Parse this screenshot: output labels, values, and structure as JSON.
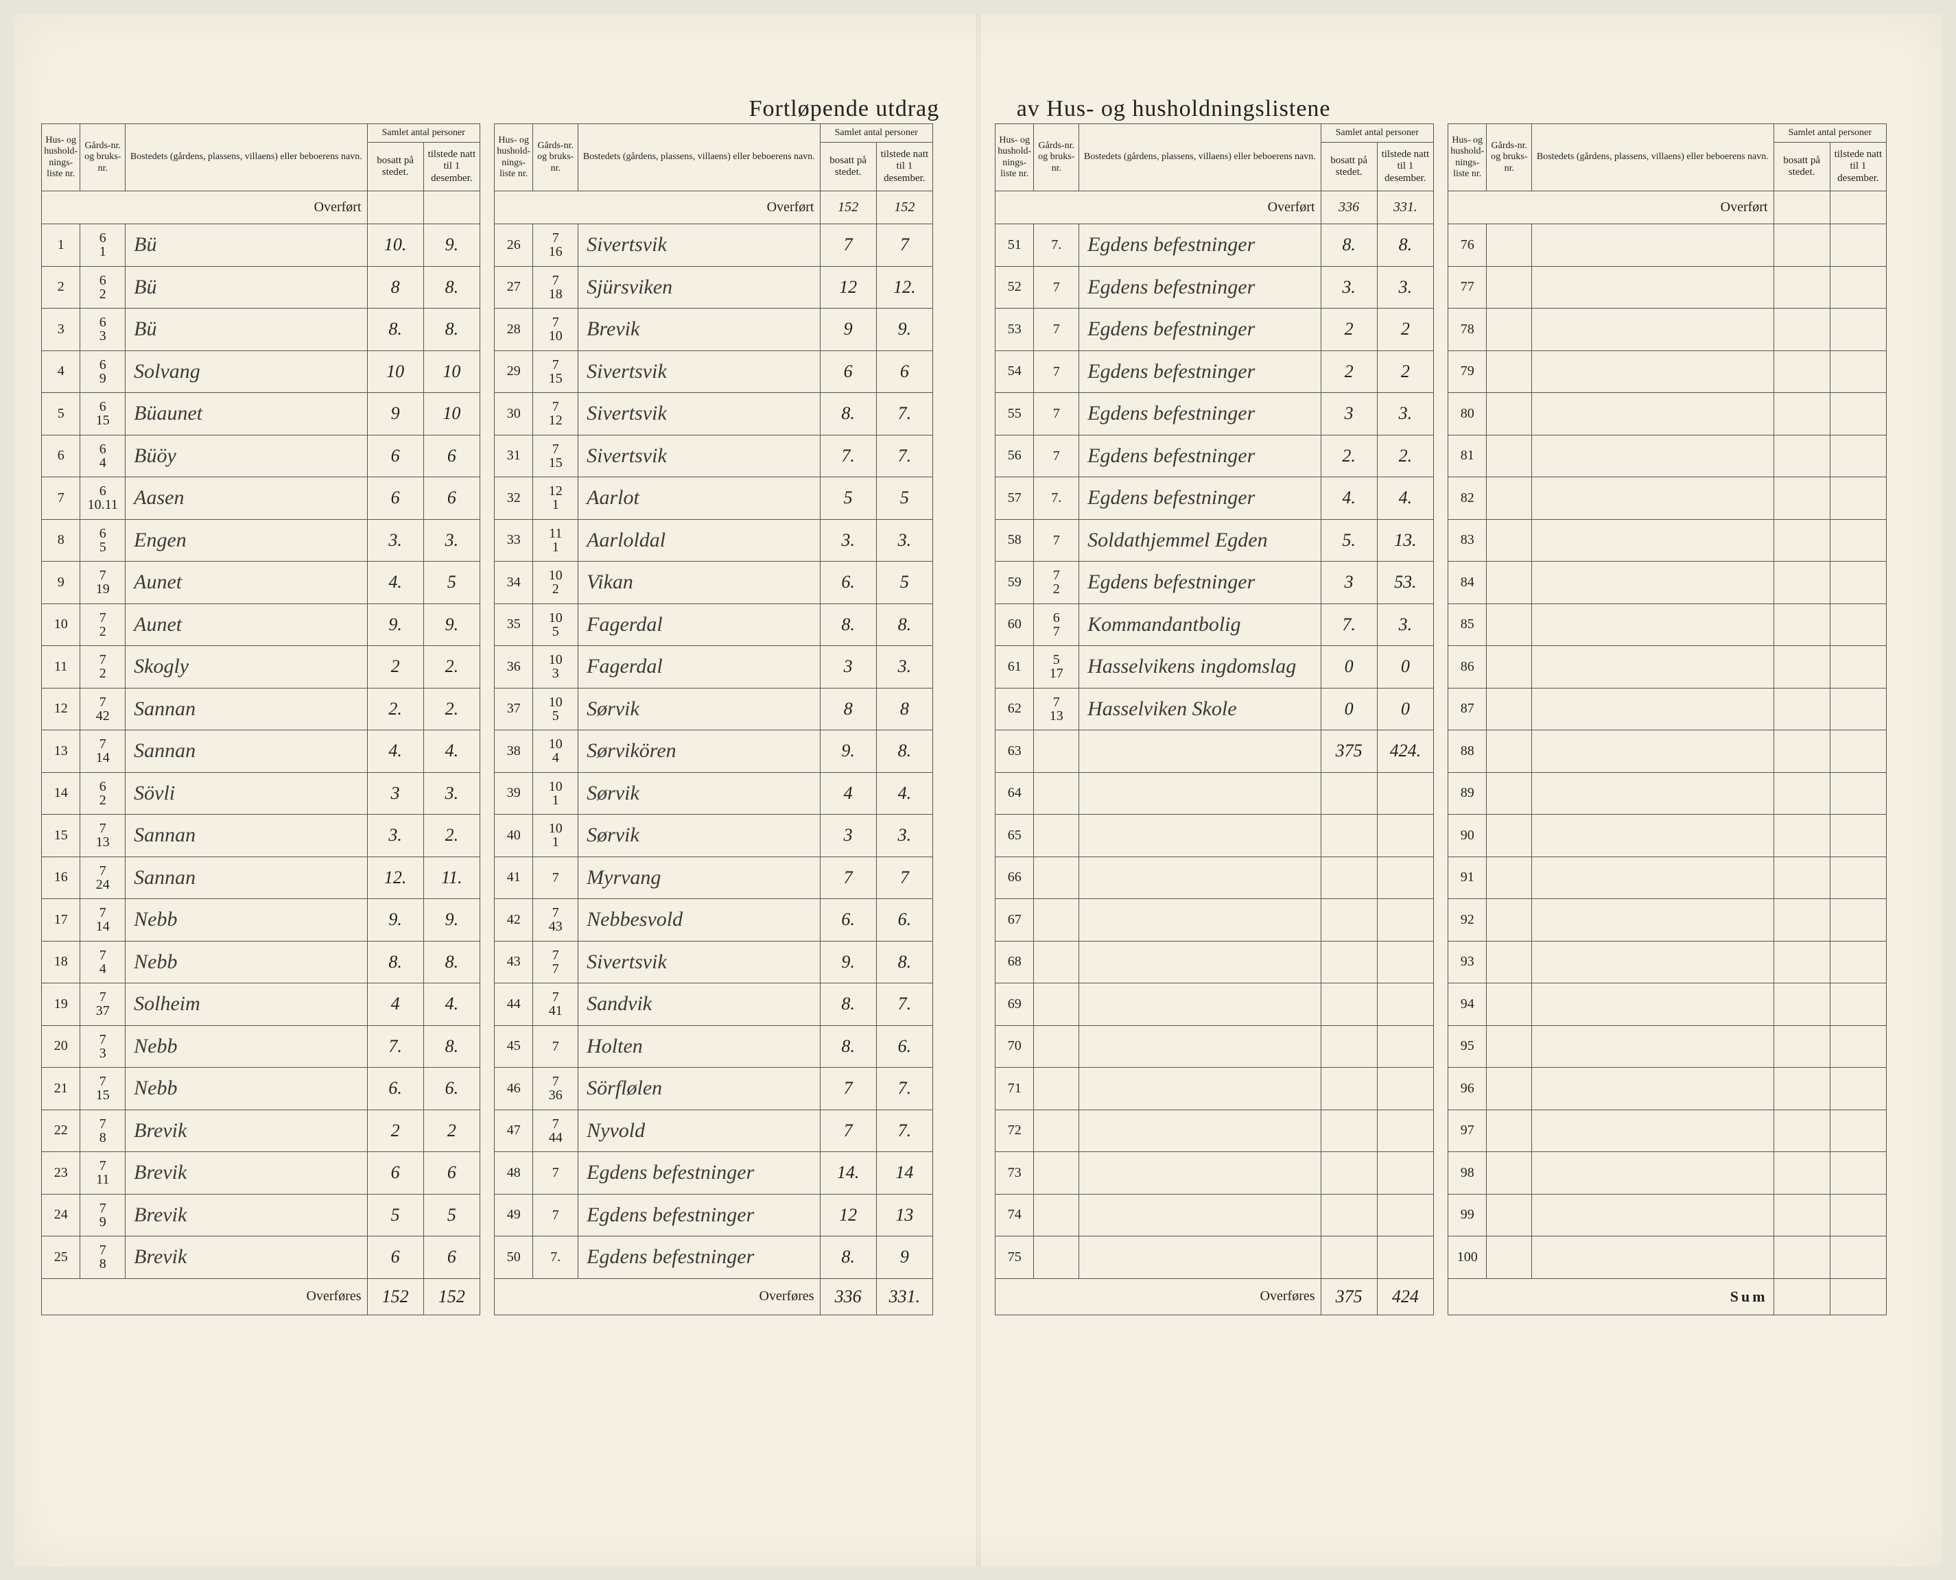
{
  "title_left": "Fortløpende utdrag",
  "title_right": "av Hus- og husholdningslistene",
  "headers": {
    "liste": "Hus- og hushold-nings-liste nr.",
    "gard": "Gårds-nr. og bruks-nr.",
    "bosted": "Bostedets (gårdens, plassens, villaens) eller beboerens navn.",
    "samlet": "Samlet antal personer",
    "bosatt": "bosatt på stedet.",
    "tilstede": "tilstede natt til 1 desember."
  },
  "labels": {
    "overfort": "Overført",
    "overfores": "Overføres",
    "sum": "Sum"
  },
  "colors": {
    "paper": "#f5f0e1",
    "ink": "#222222",
    "handwriting": "#3a3a3a",
    "rule": "#555555"
  },
  "sections": [
    {
      "overfort": {
        "b": "",
        "t": ""
      },
      "rows": [
        {
          "n": "1",
          "g1": "6",
          "g2": "1",
          "name": "Bü",
          "b": "10.",
          "t": "9."
        },
        {
          "n": "2",
          "g1": "6",
          "g2": "2",
          "name": "Bü",
          "b": "8",
          "t": "8."
        },
        {
          "n": "3",
          "g1": "6",
          "g2": "3",
          "name": "Bü",
          "b": "8.",
          "t": "8."
        },
        {
          "n": "4",
          "g1": "6",
          "g2": "9",
          "name": "Solvang",
          "b": "10",
          "t": "10"
        },
        {
          "n": "5",
          "g1": "6",
          "g2": "15",
          "name": "Büaunet",
          "b": "9",
          "t": "10"
        },
        {
          "n": "6",
          "g1": "6",
          "g2": "4",
          "name": "Büöy",
          "b": "6",
          "t": "6"
        },
        {
          "n": "7",
          "g1": "6",
          "g2": "10.11",
          "name": "Aasen",
          "b": "6",
          "t": "6"
        },
        {
          "n": "8",
          "g1": "6",
          "g2": "5",
          "name": "Engen",
          "b": "3.",
          "t": "3."
        },
        {
          "n": "9",
          "g1": "7",
          "g2": "19",
          "name": "Aunet",
          "b": "4.",
          "t": "5"
        },
        {
          "n": "10",
          "g1": "7",
          "g2": "2",
          "name": "Aunet",
          "b": "9.",
          "t": "9."
        },
        {
          "n": "11",
          "g1": "7",
          "g2": "2",
          "name": "Skogly",
          "b": "2",
          "t": "2."
        },
        {
          "n": "12",
          "g1": "7",
          "g2": "42",
          "name": "Sannan",
          "b": "2.",
          "t": "2."
        },
        {
          "n": "13",
          "g1": "7",
          "g2": "14",
          "name": "Sannan",
          "b": "4.",
          "t": "4."
        },
        {
          "n": "14",
          "g1": "6",
          "g2": "2",
          "name": "Sövli",
          "b": "3",
          "t": "3."
        },
        {
          "n": "15",
          "g1": "7",
          "g2": "13",
          "name": "Sannan",
          "b": "3.",
          "t": "2."
        },
        {
          "n": "16",
          "g1": "7",
          "g2": "24",
          "name": "Sannan",
          "b": "12.",
          "t": "11."
        },
        {
          "n": "17",
          "g1": "7",
          "g2": "14",
          "name": "Nebb",
          "b": "9.",
          "t": "9."
        },
        {
          "n": "18",
          "g1": "7",
          "g2": "4",
          "name": "Nebb",
          "b": "8.",
          "t": "8."
        },
        {
          "n": "19",
          "g1": "7",
          "g2": "37",
          "name": "Solheim",
          "b": "4",
          "t": "4."
        },
        {
          "n": "20",
          "g1": "7",
          "g2": "3",
          "name": "Nebb",
          "b": "7.",
          "t": "8."
        },
        {
          "n": "21",
          "g1": "7",
          "g2": "15",
          "name": "Nebb",
          "b": "6.",
          "t": "6."
        },
        {
          "n": "22",
          "g1": "7",
          "g2": "8",
          "name": "Brevik",
          "b": "2",
          "t": "2"
        },
        {
          "n": "23",
          "g1": "7",
          "g2": "11",
          "name": "Brevik",
          "b": "6",
          "t": "6"
        },
        {
          "n": "24",
          "g1": "7",
          "g2": "9",
          "name": "Brevik",
          "b": "5",
          "t": "5"
        },
        {
          "n": "25",
          "g1": "7",
          "g2": "8",
          "name": "Brevik",
          "b": "6",
          "t": "6"
        }
      ],
      "overfores": {
        "b": "152",
        "t": "152"
      }
    },
    {
      "overfort": {
        "b": "152",
        "t": "152"
      },
      "rows": [
        {
          "n": "26",
          "g1": "7",
          "g2": "16",
          "name": "Sivertsvik",
          "b": "7",
          "t": "7"
        },
        {
          "n": "27",
          "g1": "7",
          "g2": "18",
          "name": "Sjürsviken",
          "b": "12",
          "t": "12."
        },
        {
          "n": "28",
          "g1": "7",
          "g2": "10",
          "name": "Brevik",
          "b": "9",
          "t": "9."
        },
        {
          "n": "29",
          "g1": "7",
          "g2": "15",
          "name": "Sivertsvik",
          "b": "6",
          "t": "6"
        },
        {
          "n": "30",
          "g1": "7",
          "g2": "12",
          "name": "Sivertsvik",
          "b": "8.",
          "t": "7."
        },
        {
          "n": "31",
          "g1": "7",
          "g2": "15",
          "name": "Sivertsvik",
          "b": "7.",
          "t": "7."
        },
        {
          "n": "32",
          "g1": "12",
          "g2": "1",
          "name": "Aarlot",
          "b": "5",
          "t": "5"
        },
        {
          "n": "33",
          "g1": "11",
          "g2": "1",
          "name": "Aarloldal",
          "b": "3.",
          "t": "3."
        },
        {
          "n": "34",
          "g1": "10",
          "g2": "2",
          "name": "Vikan",
          "b": "6.",
          "t": "5"
        },
        {
          "n": "35",
          "g1": "10",
          "g2": "5",
          "name": "Fagerdal",
          "b": "8.",
          "t": "8."
        },
        {
          "n": "36",
          "g1": "10",
          "g2": "3",
          "name": "Fagerdal",
          "b": "3",
          "t": "3."
        },
        {
          "n": "37",
          "g1": "10",
          "g2": "5",
          "name": "Sørvik",
          "b": "8",
          "t": "8"
        },
        {
          "n": "38",
          "g1": "10",
          "g2": "4",
          "name": "Sørvikören",
          "b": "9.",
          "t": "8."
        },
        {
          "n": "39",
          "g1": "10",
          "g2": "1",
          "name": "Sørvik",
          "b": "4",
          "t": "4."
        },
        {
          "n": "40",
          "g1": "10",
          "g2": "1",
          "name": "Sørvik",
          "b": "3",
          "t": "3."
        },
        {
          "n": "41",
          "g1": "7",
          "g2": "",
          "name": "Myrvang",
          "b": "7",
          "t": "7"
        },
        {
          "n": "42",
          "g1": "7",
          "g2": "43",
          "name": "Nebbesvold",
          "b": "6.",
          "t": "6."
        },
        {
          "n": "43",
          "g1": "7",
          "g2": "7",
          "name": "Sivertsvik",
          "b": "9.",
          "t": "8."
        },
        {
          "n": "44",
          "g1": "7",
          "g2": "41",
          "name": "Sandvik",
          "b": "8.",
          "t": "7."
        },
        {
          "n": "45",
          "g1": "7",
          "g2": "",
          "name": "Holten",
          "b": "8.",
          "t": "6."
        },
        {
          "n": "46",
          "g1": "7",
          "g2": "36",
          "name": "Sörflølen",
          "b": "7",
          "t": "7."
        },
        {
          "n": "47",
          "g1": "7",
          "g2": "44",
          "name": "Nyvold",
          "b": "7",
          "t": "7."
        },
        {
          "n": "48",
          "g1": "7",
          "g2": "",
          "name": "Egdens befestninger",
          "b": "14.",
          "t": "14"
        },
        {
          "n": "49",
          "g1": "7",
          "g2": "",
          "name": "Egdens befestninger",
          "b": "12",
          "t": "13"
        },
        {
          "n": "50",
          "g1": "7.",
          "g2": "",
          "name": "Egdens befestninger",
          "b": "8.",
          "t": "9"
        }
      ],
      "overfores": {
        "b": "336",
        "t": "331."
      }
    },
    {
      "overfort": {
        "b": "336",
        "t": "331."
      },
      "rows": [
        {
          "n": "51",
          "g1": "7.",
          "g2": "",
          "name": "Egdens befestninger",
          "b": "8.",
          "t": "8."
        },
        {
          "n": "52",
          "g1": "7",
          "g2": "",
          "name": "Egdens befestninger",
          "b": "3.",
          "t": "3."
        },
        {
          "n": "53",
          "g1": "7",
          "g2": "",
          "name": "Egdens befestninger",
          "b": "2",
          "t": "2"
        },
        {
          "n": "54",
          "g1": "7",
          "g2": "",
          "name": "Egdens befestninger",
          "b": "2",
          "t": "2"
        },
        {
          "n": "55",
          "g1": "7",
          "g2": "",
          "name": "Egdens befestninger",
          "b": "3",
          "t": "3."
        },
        {
          "n": "56",
          "g1": "7",
          "g2": "",
          "name": "Egdens befestninger",
          "b": "2.",
          "t": "2."
        },
        {
          "n": "57",
          "g1": "7.",
          "g2": "",
          "name": "Egdens befestninger",
          "b": "4.",
          "t": "4."
        },
        {
          "n": "58",
          "g1": "7",
          "g2": "",
          "name": "Soldathjemmel Egden",
          "b": "5.",
          "t": "13."
        },
        {
          "n": "59",
          "g1": "7",
          "g2": "2",
          "name": "Egdens befestninger",
          "b": "3",
          "t": "53."
        },
        {
          "n": "60",
          "g1": "6",
          "g2": "7",
          "name": "Kommandantbolig",
          "b": "7.",
          "t": "3."
        },
        {
          "n": "61",
          "g1": "5",
          "g2": "17",
          "name": "Hasselvikens ingdomslag",
          "b": "0",
          "t": "0"
        },
        {
          "n": "62",
          "g1": "7",
          "g2": "13",
          "name": "Hasselviken Skole",
          "b": "0",
          "t": "0"
        },
        {
          "n": "63",
          "g1": "",
          "g2": "",
          "name": "",
          "b": "375",
          "t": "424."
        },
        {
          "n": "64",
          "g1": "",
          "g2": "",
          "name": "",
          "b": "",
          "t": ""
        },
        {
          "n": "65",
          "g1": "",
          "g2": "",
          "name": "",
          "b": "",
          "t": ""
        },
        {
          "n": "66",
          "g1": "",
          "g2": "",
          "name": "",
          "b": "",
          "t": ""
        },
        {
          "n": "67",
          "g1": "",
          "g2": "",
          "name": "",
          "b": "",
          "t": ""
        },
        {
          "n": "68",
          "g1": "",
          "g2": "",
          "name": "",
          "b": "",
          "t": ""
        },
        {
          "n": "69",
          "g1": "",
          "g2": "",
          "name": "",
          "b": "",
          "t": ""
        },
        {
          "n": "70",
          "g1": "",
          "g2": "",
          "name": "",
          "b": "",
          "t": ""
        },
        {
          "n": "71",
          "g1": "",
          "g2": "",
          "name": "",
          "b": "",
          "t": ""
        },
        {
          "n": "72",
          "g1": "",
          "g2": "",
          "name": "",
          "b": "",
          "t": ""
        },
        {
          "n": "73",
          "g1": "",
          "g2": "",
          "name": "",
          "b": "",
          "t": ""
        },
        {
          "n": "74",
          "g1": "",
          "g2": "",
          "name": "",
          "b": "",
          "t": ""
        },
        {
          "n": "75",
          "g1": "",
          "g2": "",
          "name": "",
          "b": "",
          "t": ""
        }
      ],
      "overfores": {
        "b": "375",
        "t": "424"
      }
    },
    {
      "overfort": {
        "b": "",
        "t": ""
      },
      "rows": [
        {
          "n": "76",
          "g1": "",
          "g2": "",
          "name": "",
          "b": "",
          "t": ""
        },
        {
          "n": "77",
          "g1": "",
          "g2": "",
          "name": "",
          "b": "",
          "t": ""
        },
        {
          "n": "78",
          "g1": "",
          "g2": "",
          "name": "",
          "b": "",
          "t": ""
        },
        {
          "n": "79",
          "g1": "",
          "g2": "",
          "name": "",
          "b": "",
          "t": ""
        },
        {
          "n": "80",
          "g1": "",
          "g2": "",
          "name": "",
          "b": "",
          "t": ""
        },
        {
          "n": "81",
          "g1": "",
          "g2": "",
          "name": "",
          "b": "",
          "t": ""
        },
        {
          "n": "82",
          "g1": "",
          "g2": "",
          "name": "",
          "b": "",
          "t": ""
        },
        {
          "n": "83",
          "g1": "",
          "g2": "",
          "name": "",
          "b": "",
          "t": ""
        },
        {
          "n": "84",
          "g1": "",
          "g2": "",
          "name": "",
          "b": "",
          "t": ""
        },
        {
          "n": "85",
          "g1": "",
          "g2": "",
          "name": "",
          "b": "",
          "t": ""
        },
        {
          "n": "86",
          "g1": "",
          "g2": "",
          "name": "",
          "b": "",
          "t": ""
        },
        {
          "n": "87",
          "g1": "",
          "g2": "",
          "name": "",
          "b": "",
          "t": ""
        },
        {
          "n": "88",
          "g1": "",
          "g2": "",
          "name": "",
          "b": "",
          "t": ""
        },
        {
          "n": "89",
          "g1": "",
          "g2": "",
          "name": "",
          "b": "",
          "t": ""
        },
        {
          "n": "90",
          "g1": "",
          "g2": "",
          "name": "",
          "b": "",
          "t": ""
        },
        {
          "n": "91",
          "g1": "",
          "g2": "",
          "name": "",
          "b": "",
          "t": ""
        },
        {
          "n": "92",
          "g1": "",
          "g2": "",
          "name": "",
          "b": "",
          "t": ""
        },
        {
          "n": "93",
          "g1": "",
          "g2": "",
          "name": "",
          "b": "",
          "t": ""
        },
        {
          "n": "94",
          "g1": "",
          "g2": "",
          "name": "",
          "b": "",
          "t": ""
        },
        {
          "n": "95",
          "g1": "",
          "g2": "",
          "name": "",
          "b": "",
          "t": ""
        },
        {
          "n": "96",
          "g1": "",
          "g2": "",
          "name": "",
          "b": "",
          "t": ""
        },
        {
          "n": "97",
          "g1": "",
          "g2": "",
          "name": "",
          "b": "",
          "t": ""
        },
        {
          "n": "98",
          "g1": "",
          "g2": "",
          "name": "",
          "b": "",
          "t": ""
        },
        {
          "n": "99",
          "g1": "",
          "g2": "",
          "name": "",
          "b": "",
          "t": ""
        },
        {
          "n": "100",
          "g1": "",
          "g2": "",
          "name": "",
          "b": "",
          "t": ""
        }
      ],
      "overfores": {
        "b": "",
        "t": "",
        "label": "Sum"
      }
    }
  ]
}
